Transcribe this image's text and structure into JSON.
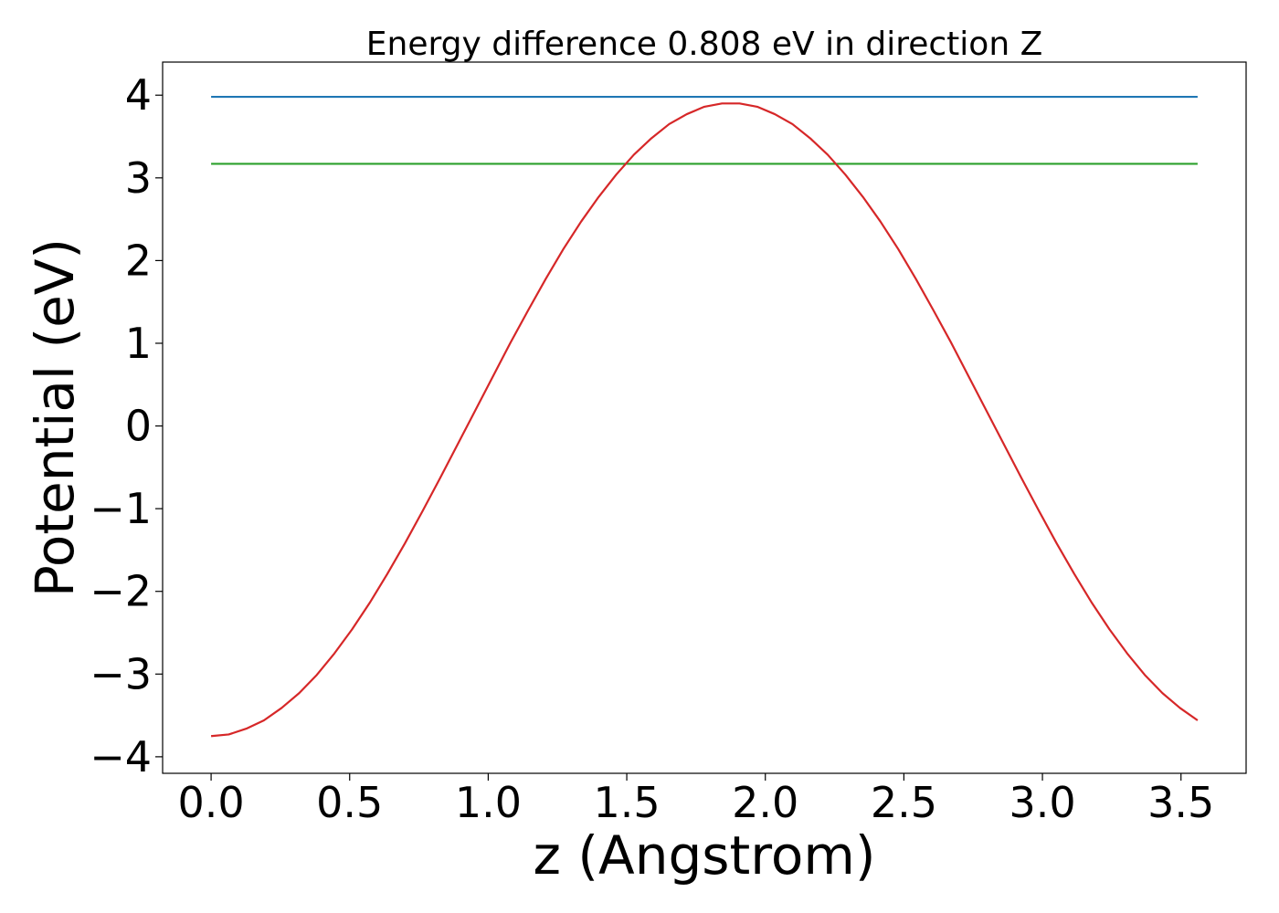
{
  "chart_data": {
    "type": "line",
    "title": "Energy difference 0.808 eV in direction Z",
    "xlabel": "z (Angstrom)",
    "ylabel": "Potential (eV)",
    "xlim": [
      -0.175,
      3.735
    ],
    "ylim": [
      -4.2,
      4.4
    ],
    "xticks": [
      0.0,
      0.5,
      1.0,
      1.5,
      2.0,
      2.5,
      3.0,
      3.5
    ],
    "xtick_labels": [
      "0.0",
      "0.5",
      "1.0",
      "1.5",
      "2.0",
      "2.5",
      "3.0",
      "3.5"
    ],
    "yticks": [
      -4,
      -3,
      -2,
      -1,
      0,
      1,
      2,
      3,
      4
    ],
    "ytick_labels": [
      "−4",
      "−3",
      "−2",
      "−1",
      "0",
      "1",
      "2",
      "3",
      "4"
    ],
    "grid": false,
    "series": [
      {
        "color": "#1f77b4",
        "x": [
          0.0,
          3.56
        ],
        "y": [
          3.98,
          3.98
        ]
      },
      {
        "color": "#2ca02c",
        "x": [
          0.0,
          3.56
        ],
        "y": [
          3.17,
          3.17
        ]
      },
      {
        "color": "#d62728",
        "x": [
          0.0,
          0.0636,
          0.1271,
          0.1907,
          0.2543,
          0.3179,
          0.3814,
          0.445,
          0.5086,
          0.5721,
          0.6357,
          0.6993,
          0.7629,
          0.8264,
          0.89,
          0.9536,
          1.0171,
          1.0807,
          1.1443,
          1.2079,
          1.2714,
          1.335,
          1.3986,
          1.4621,
          1.5257,
          1.5893,
          1.6529,
          1.7164,
          1.78,
          1.8436,
          1.9071,
          1.9707,
          2.0343,
          2.0979,
          2.1614,
          2.225,
          2.2886,
          2.3521,
          2.4157,
          2.4793,
          2.5429,
          2.6064,
          2.67,
          2.7336,
          2.7971,
          2.8607,
          2.9243,
          2.9879,
          3.0514,
          3.115,
          3.1786,
          3.2421,
          3.3057,
          3.3693,
          3.4329,
          3.4964,
          3.56
        ],
        "y": [
          -3.75,
          -3.73,
          -3.66,
          -3.56,
          -3.41,
          -3.23,
          -3.01,
          -2.75,
          -2.46,
          -2.14,
          -1.79,
          -1.42,
          -1.03,
          -0.63,
          -0.22,
          0.19,
          0.6,
          1.01,
          1.4,
          1.78,
          2.14,
          2.47,
          2.77,
          3.04,
          3.28,
          3.48,
          3.65,
          3.77,
          3.86,
          3.9,
          3.9,
          3.86,
          3.77,
          3.65,
          3.48,
          3.28,
          3.04,
          2.77,
          2.47,
          2.14,
          1.78,
          1.4,
          1.01,
          0.6,
          0.19,
          -0.22,
          -0.63,
          -1.03,
          -1.42,
          -1.79,
          -2.14,
          -2.46,
          -2.75,
          -3.01,
          -3.23,
          -3.41,
          -3.56
        ]
      }
    ]
  }
}
